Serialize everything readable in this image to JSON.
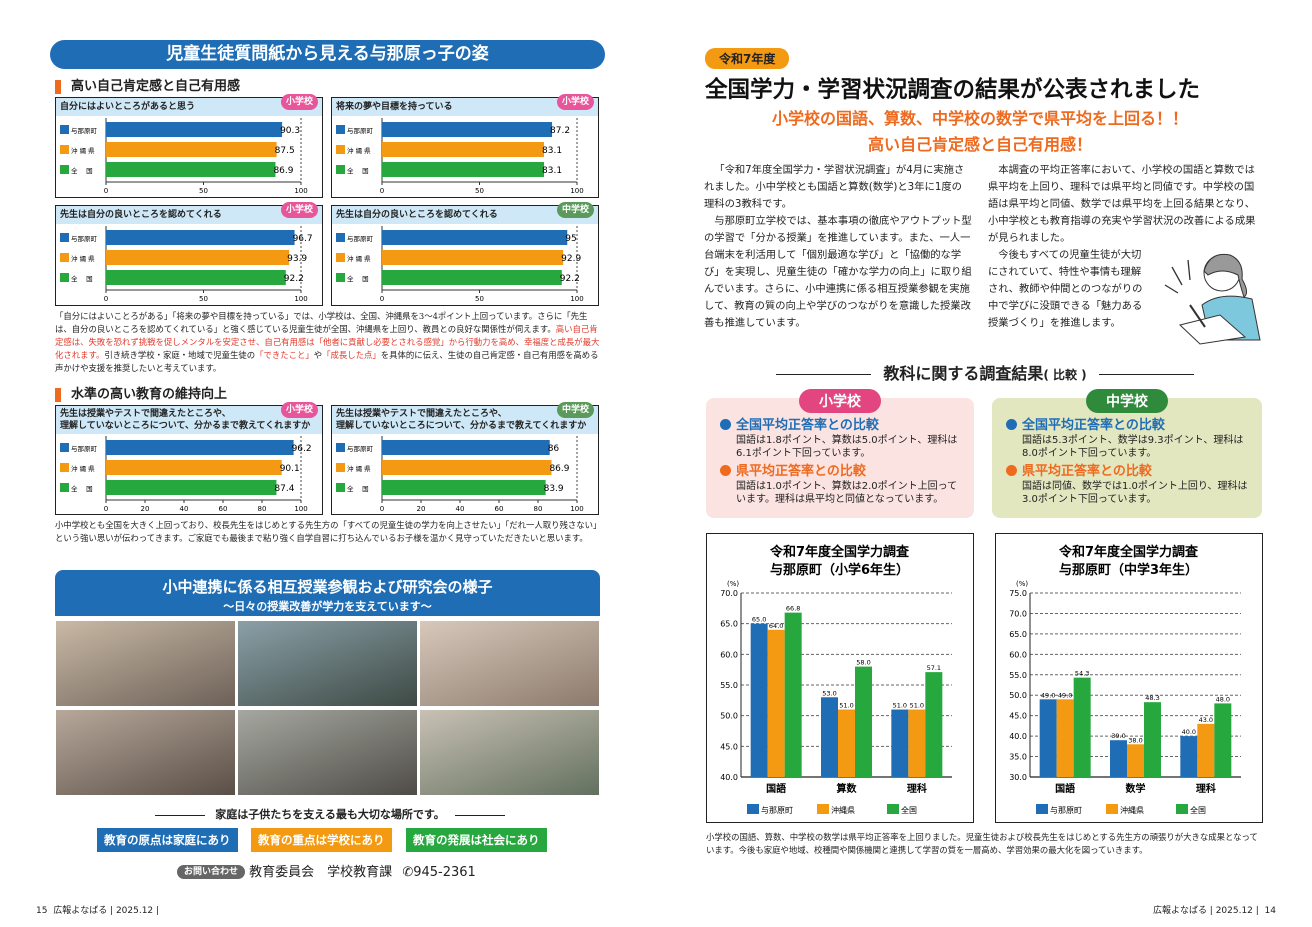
{
  "left": {
    "header": "児童生徒質問紙から見える与那原っ子の姿",
    "section1": "高い自己肯定感と自己有用感",
    "para1_a": "「自分にはよいことろがある」「将来の夢や目標を持っている」では、小学校は、全国、沖縄県を3～4ポイント上回っています。さらに「先生は、自分の良いところを認めてくれている」と強く感じている児童生徒が全国、沖縄県を上回り、教員との良好な関係性が伺えます。",
    "para1_red": "高い自己肯定感は、失敗を恐れず挑戦を促しメンタルを安定させ、自己有用感は「他者に貢献し必要とされる感覚」から行動力を高め、幸福度と成長が最大化されます。",
    "para1_b": "引き続き学校・家庭・地域で児童生徒の",
    "para1_red2": "「できたこと」",
    "para1_c": "や",
    "para1_red3": "「成長した点」",
    "para1_d": "を具体的に伝え、生徒の自己肯定感・自己有用感を高める声かけや支援を推奨したいと考えています。",
    "section2": "水準の高い教育の維持向上",
    "para2": "小中学校とも全国を大きく上回っており、校長先生をはじめとする先生方の「すべての児童生徒の学力を向上させたい」「だれ一人取り残さない」という強い思いが伝わってきます。ご家庭でも最後まで粘り強く自学自習に打ち込んでいるお子様を温かく見守っていただきたいと思います。",
    "banner_title": "小中連携に係る相互授業参観および研究会の様子",
    "banner_sub": "～日々の授業改善が学力を支えています～",
    "tagline": "家庭は子供たちを支える最も大切な場所です。",
    "mottos": [
      "教育の原点は家庭にあり",
      "教育の重点は学校にあり",
      "教育の発展は社会にあり"
    ],
    "contact_label": "お問い合わせ",
    "contact_dept": "教育委員会　学校教育課",
    "contact_phone": "945-2361",
    "page_number": "15",
    "footer": "広報よなばる | 2025.12 |"
  },
  "right": {
    "badge": "令和7年度",
    "title": "全国学力・学習状況調査の結果が公表されました",
    "sub1": "小学校の国語、算数、中学校の数学で県平均を上回る！！",
    "sub2": "高い自己肯定感と自己有用感！",
    "col1": [
      "「令和7年度全国学力・学習状況調査」が4月に実施されました。小中学校とも国語と算数(数学)と3年に1度の理科の3教科です。",
      "与那原町立学校では、基本事項の徹底やアウトプット型の学習で「分かる授業」を推進しています。また、一人一台端末を利活用して「個別最適な学び」と「協働的な学び」を実現し、児童生徒の「確かな学力の向上」に取り組んでいます。さらに、小中連携に係る相互授業参観を実施して、教育の質の向上や学びのつながりを意識した授業改善も推進しています。"
    ],
    "col2": [
      "本調査の平均正答率において、小学校の国語と算数では県平均を上回り、理科では県平均と同値です。中学校の国語は県平均と同値、数学では県平均を上回る結果となり、小中学校とも教育指導の充実や学習状況の改善による成果が見られました。",
      "今後もすべての児童生徒が大切にされていて、特性や事情も理解され、教師や仲間とのつながりの中で学びに没頭できる「魅力ある授業づくり」を推進します。"
    ],
    "section": "教科に関する調査結果",
    "section_small": "( 比較 )",
    "elementary": {
      "tag": "小学校",
      "h1": "全国平均正答率との比較",
      "t1": "国語は1.8ポイント、算数は5.0ポイント、理科は6.1ポイント下回っています。",
      "h2": "県平均正答率との比較",
      "t2": "国語は1.0ポイント、算数は2.0ポイント上回っています。理科は県平均と同値となっています。"
    },
    "junior": {
      "tag": "中学校",
      "h1": "全国平均正答率との比較",
      "t1": "国語は5.3ポイント、数学は9.3ポイント、理科は8.0ポイント下回っています。",
      "h2": "県平均正答率との比較",
      "t2": "国語は同値、数学では1.0ポイント上回り、理科は3.0ポイント下回っています。"
    },
    "closing": "小学校の国語、算数、中学校の数学は県平均正答率を上回りました。児童生徒および校長先生をはじめとする先生方の頑張りが大きな成果となっています。今後も家庭や地域、校種間や関係機関と連携して学習の質を一層高め、学習効果の最大化を図っていきます。",
    "page_number": "14",
    "footer": "広報よなばる | 2025.12 |"
  },
  "colors": {
    "blue": "#1f6db5",
    "orange": "#f39a12",
    "green": "#26a83e",
    "pink": "#e8559a",
    "badge_green": "#5b9a5b",
    "red": "#e23a2b"
  },
  "chart_data": [
    {
      "type": "bar",
      "orientation": "horizontal",
      "title": "自分にはよいところがあると思う",
      "badge": "小学校",
      "categories": [
        "与那原町",
        "沖 縄 県",
        "全　 国"
      ],
      "values": [
        90.3,
        87.5,
        86.9
      ],
      "xlim": [
        0,
        100
      ],
      "ticks": [
        "0",
        "50",
        "100"
      ]
    },
    {
      "type": "bar",
      "orientation": "horizontal",
      "title": "将来の夢や目標を持っている",
      "badge": "小学校",
      "categories": [
        "与那原町",
        "沖 縄 県",
        "全　 国"
      ],
      "values": [
        87.2,
        83.1,
        83.1
      ],
      "xlim": [
        0,
        100
      ],
      "ticks": [
        "0",
        "50",
        "100"
      ]
    },
    {
      "type": "bar",
      "orientation": "horizontal",
      "title": "先生は自分の良いところを認めてくれる",
      "badge": "小学校",
      "categories": [
        "与那原町",
        "沖 縄 県",
        "全　 国"
      ],
      "values": [
        96.7,
        93.9,
        92.2
      ],
      "xlim": [
        0,
        100
      ],
      "ticks": [
        "0",
        "50",
        "100"
      ]
    },
    {
      "type": "bar",
      "orientation": "horizontal",
      "title": "先生は自分の良いところを認めてくれる",
      "badge": "中学校",
      "categories": [
        "与那原町",
        "沖 縄 県",
        "全　 国"
      ],
      "values": [
        95,
        92.9,
        92.2
      ],
      "xlim": [
        0,
        100
      ],
      "ticks": [
        "0",
        "50",
        "100"
      ]
    },
    {
      "type": "bar",
      "orientation": "horizontal",
      "title": "先生は授業やテストで間違えたところや、",
      "title2": "理解していないところについて、分かるまで教えてくれますか",
      "badge": "小学校",
      "categories": [
        "与那原町",
        "沖 縄 県",
        "全　 国"
      ],
      "values": [
        96.2,
        90.1,
        87.4
      ],
      "xlim": [
        0,
        100
      ],
      "ticks": [
        "0",
        "20",
        "40",
        "60",
        "80",
        "100"
      ]
    },
    {
      "type": "bar",
      "orientation": "horizontal",
      "title": "先生は授業やテストで間違えたところや、",
      "title2": "理解していないところについて、分かるまで教えてくれますか",
      "badge": "中学校",
      "categories": [
        "与那原町",
        "沖 縄 県",
        "全　 国"
      ],
      "values": [
        86,
        86.9,
        83.9
      ],
      "xlim": [
        0,
        100
      ],
      "ticks": [
        "0",
        "20",
        "40",
        "60",
        "80",
        "100"
      ]
    },
    {
      "type": "bar",
      "orientation": "vertical",
      "title": "令和7年度全国学力調査",
      "subtitle": "与那原町（小学6年生）",
      "ylabel": "(%)",
      "categories": [
        "国語",
        "算数",
        "理科"
      ],
      "series": [
        {
          "name": "与那原町",
          "values": [
            65.0,
            53.0,
            51.0
          ]
        },
        {
          "name": "沖縄県",
          "values": [
            64.0,
            51.0,
            51.0
          ]
        },
        {
          "name": "全国",
          "values": [
            66.8,
            58.0,
            57.1
          ]
        }
      ],
      "ylim": [
        40,
        70
      ],
      "yticks": [
        "40.0",
        "45.0",
        "50.0",
        "55.0",
        "60.0",
        "65.0",
        "70.0"
      ],
      "grid": true,
      "legend": "bottom"
    },
    {
      "type": "bar",
      "orientation": "vertical",
      "title": "令和7年度全国学力調査",
      "subtitle": "与那原町（中学3年生）",
      "ylabel": "(%)",
      "categories": [
        "国語",
        "数学",
        "理科"
      ],
      "series": [
        {
          "name": "与那原町",
          "values": [
            49.0,
            39.0,
            40.0
          ]
        },
        {
          "name": "沖縄県",
          "values": [
            49.0,
            38.0,
            43.0
          ]
        },
        {
          "name": "全国",
          "values": [
            54.3,
            48.3,
            48.0
          ]
        }
      ],
      "ylim": [
        30,
        75
      ],
      "yticks": [
        "30.0",
        "35.0",
        "40.0",
        "45.0",
        "50.0",
        "55.0",
        "60.0",
        "65.0",
        "70.0",
        "75.0"
      ],
      "grid": true,
      "legend": "bottom"
    }
  ]
}
